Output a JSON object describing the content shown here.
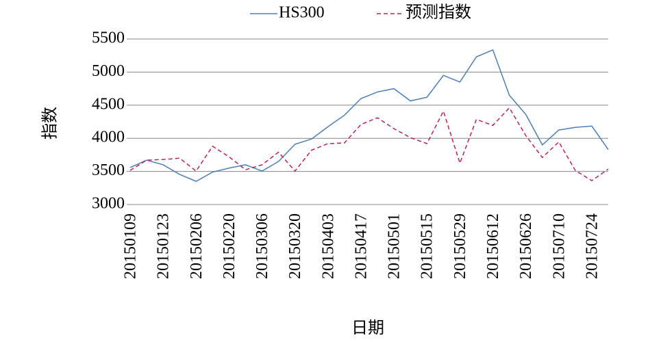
{
  "chart_data": {
    "type": "line",
    "x_label": "日期",
    "y_label": "指数",
    "categories": [
      "20150109",
      null,
      "20150123",
      null,
      "20150206",
      null,
      "20150220",
      null,
      "20150306",
      null,
      "20150320",
      null,
      "20150403",
      null,
      "20150417",
      null,
      "20150501",
      null,
      "20150515",
      null,
      "20150529",
      null,
      "20150612",
      null,
      "20150626",
      null,
      "20150710",
      null,
      "20150724",
      null
    ],
    "series": [
      {
        "name": "HS300",
        "color": "#4a7ebb",
        "line_style": "solid",
        "values": [
          3558,
          3670,
          3600,
          3455,
          3350,
          3490,
          3550,
          3600,
          3505,
          3650,
          3910,
          3990,
          4175,
          4350,
          4600,
          4700,
          4750,
          4565,
          4620,
          4950,
          4850,
          5230,
          5335,
          4650,
          4360,
          3900,
          4125,
          4165,
          4185,
          3830
        ]
      },
      {
        "name": "预测指数",
        "color": "#be1e5a",
        "line_style": "dashed",
        "values": [
          3515,
          3670,
          3680,
          3700,
          3505,
          3880,
          3720,
          3525,
          3600,
          3790,
          3505,
          3820,
          3920,
          3930,
          4210,
          4310,
          4145,
          4010,
          3920,
          4410,
          3625,
          4285,
          4195,
          4460,
          4040,
          3710,
          3945,
          3515,
          3360,
          3535
        ]
      }
    ],
    "ylim": [
      3000,
      5500
    ],
    "yticks": [
      3000,
      3500,
      4000,
      4500,
      5000,
      5500
    ],
    "grid": true,
    "legend": "top"
  }
}
